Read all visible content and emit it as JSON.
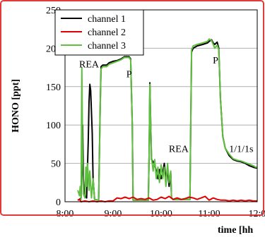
{
  "chart_data": {
    "type": "line",
    "title": "",
    "xlabel": "time [hh",
    "ylabel": "HONO [ppt]",
    "xlim": [
      "8:00",
      "12:00"
    ],
    "ylim": [
      0,
      250
    ],
    "x_ticks": [
      "8:00",
      "9:00",
      "10:00",
      "11:00",
      "12:0"
    ],
    "y_ticks": [
      "0",
      "50",
      "100",
      "150",
      "200",
      "250"
    ],
    "grid": "horizontal",
    "legend_position": "top-left",
    "annotations": [
      {
        "text": "REA",
        "x": "8:30",
        "y": 175
      },
      {
        "text": "P",
        "x": "9:20",
        "y": 162
      },
      {
        "text": "REA",
        "x": "10:22",
        "y": 65
      },
      {
        "text": "P",
        "x": "11:08",
        "y": 180
      },
      {
        "text": "1/1/1s",
        "x": "11:40",
        "y": 65
      }
    ],
    "series": [
      {
        "name": "channel 1",
        "color": "#000000",
        "points": [
          [
            "8:16",
            2
          ],
          [
            "8:18",
            3
          ],
          [
            "8:20",
            5
          ],
          [
            "8:21",
            50
          ],
          [
            "8:22",
            100
          ],
          [
            "8:23",
            30
          ],
          [
            "8:24",
            10
          ],
          [
            "8:27",
            5
          ],
          [
            "8:29",
            80
          ],
          [
            "8:30",
            130
          ],
          [
            "8:31",
            153
          ],
          [
            "8:32",
            145
          ],
          [
            "8:34",
            90
          ],
          [
            "8:35",
            30
          ],
          [
            "8:37",
            3
          ],
          [
            "8:42",
            2
          ],
          [
            "8:44",
            130
          ],
          [
            "8:45",
            176
          ],
          [
            "8:47",
            178
          ],
          [
            "8:52",
            178
          ],
          [
            "8:55",
            181
          ],
          [
            "9:00",
            183
          ],
          [
            "9:05",
            184
          ],
          [
            "9:10",
            186
          ],
          [
            "9:14",
            189
          ],
          [
            "9:20",
            189
          ],
          [
            "9:22",
            186
          ],
          [
            "9:24",
            100
          ],
          [
            "9:25",
            2
          ],
          [
            "9:44",
            2
          ],
          [
            "9:45",
            60
          ],
          [
            "9:46",
            155
          ],
          [
            "9:47",
            100
          ],
          [
            "9:48",
            55
          ],
          [
            "9:50",
            52
          ],
          [
            "9:52",
            48
          ],
          [
            "9:54",
            40
          ],
          [
            "9:56",
            30
          ],
          [
            "9:58",
            42
          ],
          [
            "10:00",
            30
          ],
          [
            "10:02",
            38
          ],
          [
            "10:04",
            50
          ],
          [
            "10:06",
            30
          ],
          [
            "10:08",
            40
          ],
          [
            "10:10",
            20
          ],
          [
            "10:12",
            38
          ],
          [
            "10:13",
            5
          ],
          [
            "10:15",
            3
          ],
          [
            "10:36",
            3
          ],
          [
            "10:37",
            100
          ],
          [
            "10:38",
            195
          ],
          [
            "10:40",
            200
          ],
          [
            "10:45",
            203
          ],
          [
            "10:52",
            205
          ],
          [
            "10:58",
            207
          ],
          [
            "11:00",
            209
          ],
          [
            "11:03",
            211
          ],
          [
            "11:05",
            207
          ],
          [
            "11:07",
            205
          ],
          [
            "11:10",
            208
          ],
          [
            "11:12",
            200
          ],
          [
            "11:14",
            135
          ],
          [
            "11:17",
            85
          ],
          [
            "11:20",
            70
          ],
          [
            "11:25",
            60
          ],
          [
            "11:30",
            55
          ],
          [
            "11:35",
            53
          ],
          [
            "11:40",
            52
          ],
          [
            "11:45",
            50
          ],
          [
            "11:50",
            47
          ],
          [
            "11:55",
            45
          ],
          [
            "11:58",
            44
          ],
          [
            "12:00",
            44
          ]
        ]
      },
      {
        "name": "channel 2",
        "color": "#e00000",
        "points": [
          [
            "8:16",
            2
          ],
          [
            "8:18",
            3
          ],
          [
            "8:20",
            0
          ],
          [
            "8:25",
            1
          ],
          [
            "8:30",
            0
          ],
          [
            "8:35",
            1
          ],
          [
            "8:40",
            0
          ],
          [
            "8:45",
            1
          ],
          [
            "8:50",
            0
          ],
          [
            "8:55",
            1
          ],
          [
            "9:00",
            1
          ],
          [
            "9:05",
            5
          ],
          [
            "9:10",
            4
          ],
          [
            "9:15",
            6
          ],
          [
            "9:20",
            4
          ],
          [
            "9:25",
            6
          ],
          [
            "9:30",
            3
          ],
          [
            "9:35",
            4
          ],
          [
            "9:40",
            3
          ],
          [
            "9:45",
            5
          ],
          [
            "9:50",
            2
          ],
          [
            "9:55",
            3
          ],
          [
            "10:00",
            6
          ],
          [
            "10:05",
            4
          ],
          [
            "10:10",
            7
          ],
          [
            "10:15",
            3
          ],
          [
            "10:20",
            5
          ],
          [
            "10:25",
            3
          ],
          [
            "10:30",
            4
          ],
          [
            "10:35",
            6
          ],
          [
            "10:40",
            5
          ],
          [
            "10:45",
            3
          ],
          [
            "10:50",
            5
          ],
          [
            "10:55",
            7
          ],
          [
            "11:00",
            2
          ],
          [
            "11:05",
            5
          ],
          [
            "11:10",
            3
          ],
          [
            "11:15",
            2
          ],
          [
            "11:20",
            2
          ],
          [
            "11:25",
            1
          ],
          [
            "11:30",
            2
          ],
          [
            "11:35",
            1
          ],
          [
            "11:40",
            2
          ],
          [
            "11:45",
            1
          ],
          [
            "11:50",
            2
          ],
          [
            "11:55",
            1
          ],
          [
            "12:00",
            1
          ]
        ]
      },
      {
        "name": "channel 3",
        "color": "#5fbf3f",
        "points": [
          [
            "8:16",
            15
          ],
          [
            "8:18",
            8
          ],
          [
            "8:19",
            20
          ],
          [
            "8:20",
            3
          ],
          [
            "8:21",
            175
          ],
          [
            "8:22",
            60
          ],
          [
            "8:23",
            10
          ],
          [
            "8:25",
            5
          ],
          [
            "8:26",
            45
          ],
          [
            "8:27",
            20
          ],
          [
            "8:28",
            50
          ],
          [
            "8:29",
            35
          ],
          [
            "8:30",
            15
          ],
          [
            "8:31",
            40
          ],
          [
            "8:33",
            5
          ],
          [
            "8:35",
            30
          ],
          [
            "8:37",
            3
          ],
          [
            "8:42",
            2
          ],
          [
            "8:44",
            125
          ],
          [
            "8:45",
            173
          ],
          [
            "8:47",
            176
          ],
          [
            "8:52",
            176
          ],
          [
            "8:55",
            179
          ],
          [
            "9:00",
            181
          ],
          [
            "9:05",
            183
          ],
          [
            "9:10",
            185
          ],
          [
            "9:14",
            188
          ],
          [
            "9:20",
            188
          ],
          [
            "9:22",
            185
          ],
          [
            "9:24",
            100
          ],
          [
            "9:25",
            2
          ],
          [
            "9:44",
            2
          ],
          [
            "9:45",
            60
          ],
          [
            "9:46",
            153
          ],
          [
            "9:47",
            100
          ],
          [
            "9:48",
            58
          ],
          [
            "9:50",
            40
          ],
          [
            "9:52",
            55
          ],
          [
            "9:54",
            30
          ],
          [
            "9:56",
            45
          ],
          [
            "9:58",
            25
          ],
          [
            "10:00",
            48
          ],
          [
            "10:02",
            30
          ],
          [
            "10:04",
            45
          ],
          [
            "10:06",
            20
          ],
          [
            "10:08",
            50
          ],
          [
            "10:10",
            25
          ],
          [
            "10:12",
            40
          ],
          [
            "10:13",
            5
          ],
          [
            "10:15",
            3
          ],
          [
            "10:36",
            3
          ],
          [
            "10:37",
            100
          ],
          [
            "10:38",
            198
          ],
          [
            "10:40",
            203
          ],
          [
            "10:45",
            205
          ],
          [
            "10:52",
            207
          ],
          [
            "10:58",
            209
          ],
          [
            "11:00",
            212
          ],
          [
            "11:03",
            210
          ],
          [
            "11:05",
            205
          ],
          [
            "11:07",
            200
          ],
          [
            "11:10",
            204
          ],
          [
            "11:12",
            198
          ],
          [
            "11:14",
            135
          ],
          [
            "11:17",
            85
          ],
          [
            "11:20",
            70
          ],
          [
            "11:25",
            62
          ],
          [
            "11:30",
            56
          ],
          [
            "11:35",
            54
          ],
          [
            "11:40",
            53
          ],
          [
            "11:45",
            51
          ],
          [
            "11:50",
            49
          ],
          [
            "11:55",
            47
          ],
          [
            "11:58",
            45
          ],
          [
            "12:00",
            45
          ]
        ]
      }
    ]
  }
}
